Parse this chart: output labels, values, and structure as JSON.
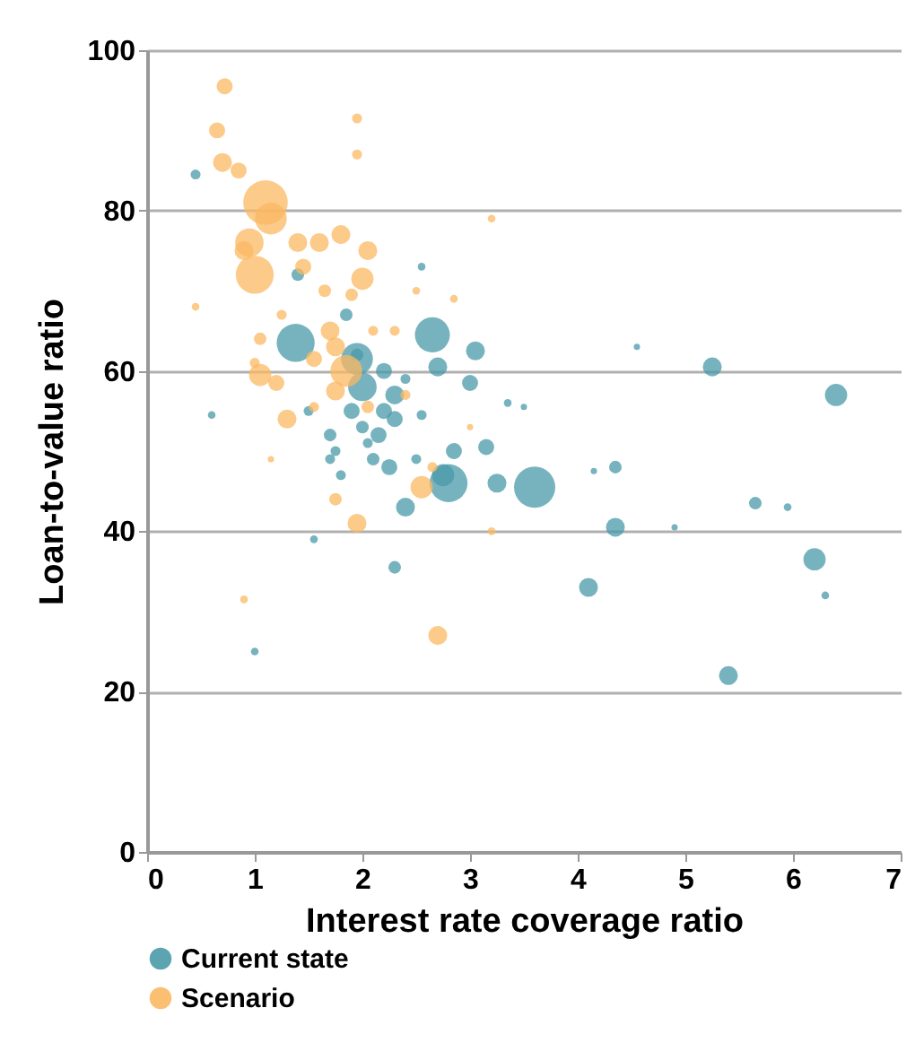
{
  "chart_data": {
    "type": "bubble",
    "xlabel": "Interest rate coverage ratio",
    "ylabel": "Loan-to-value ratio",
    "xlim": [
      0,
      7
    ],
    "xticks": [
      0,
      1,
      2,
      3,
      4,
      5,
      6,
      7
    ],
    "ylim": [
      0,
      100
    ],
    "yticks": [
      0,
      20,
      40,
      60,
      80,
      100
    ],
    "grid": "y",
    "legend": "bottom",
    "marker": "circle",
    "series": [
      {
        "name": "Current state",
        "color": "#4a9aa8",
        "x": [
          0.45,
          0.6,
          1.0,
          1.55,
          2.3,
          1.4,
          1.85,
          1.38,
          1.95,
          2.0,
          2.65,
          2.7,
          3.05,
          2.55,
          2.3,
          2.15,
          2.25,
          2.4,
          2.85,
          3.25,
          2.75,
          2.8,
          3.6,
          3.5,
          2.55,
          3.0,
          3.15,
          3.35,
          4.1,
          4.35,
          4.35,
          4.55,
          4.15,
          4.9,
          5.25,
          5.4,
          5.65,
          5.95,
          6.2,
          6.3,
          6.4,
          1.5,
          1.9,
          2.0,
          1.7,
          2.05,
          1.8,
          2.1,
          2.2,
          2.4,
          2.5,
          1.95,
          2.2,
          1.7,
          2.3,
          1.75
        ],
        "values": [
          84.5,
          54.5,
          25,
          39,
          35.5,
          72,
          67,
          63.5,
          61.5,
          58,
          64.5,
          60.5,
          62.5,
          73,
          57,
          52,
          48,
          43,
          50,
          46,
          47,
          46,
          45.5,
          55.5,
          54.5,
          58.5,
          50.5,
          56,
          33,
          48,
          40.5,
          63,
          47.5,
          40.5,
          60.5,
          22,
          43.5,
          43,
          36.5,
          32,
          57,
          55,
          55,
          53,
          52,
          51,
          47,
          49,
          55,
          59,
          49,
          62,
          60,
          49,
          54,
          50
        ],
        "sizes": [
          0.05,
          0.03,
          0.03,
          0.03,
          0.08,
          0.08,
          0.08,
          0.73,
          0.51,
          0.41,
          0.62,
          0.18,
          0.18,
          0.03,
          0.18,
          0.13,
          0.13,
          0.18,
          0.13,
          0.18,
          0.25,
          0.73,
          0.86,
          0.02,
          0.05,
          0.13,
          0.13,
          0.03,
          0.18,
          0.08,
          0.18,
          0.02,
          0.02,
          0.02,
          0.18,
          0.18,
          0.08,
          0.03,
          0.25,
          0.03,
          0.25,
          0.05,
          0.13,
          0.08,
          0.08,
          0.05,
          0.05,
          0.08,
          0.13,
          0.05,
          0.05,
          0.08,
          0.13,
          0.05,
          0.13,
          0.05
        ]
      },
      {
        "name": "Scenario",
        "color": "#fbb862",
        "x": [
          0.72,
          0.65,
          0.7,
          0.85,
          1.1,
          1.15,
          0.95,
          1.0,
          0.9,
          1.4,
          1.6,
          1.8,
          1.45,
          2.0,
          1.65,
          1.9,
          1.05,
          1.7,
          1.75,
          1.55,
          1.2,
          1.3,
          1.95,
          1.95,
          3.2,
          0.45,
          0.9,
          2.7,
          1.95,
          1.75,
          2.55,
          2.65,
          2.05,
          1.85,
          1.75,
          2.1,
          1.05,
          2.05,
          2.5,
          3.2,
          2.85,
          1.25,
          1.0,
          1.55,
          3.0,
          2.3,
          1.15,
          2.4
        ],
        "values": [
          95.5,
          90,
          86,
          85,
          81,
          79,
          76,
          72,
          75,
          76,
          76,
          77,
          73,
          71.5,
          70,
          69.5,
          64,
          65,
          63,
          61.5,
          58.5,
          54,
          91.5,
          87,
          79,
          68,
          31.5,
          27,
          41,
          44,
          45.5,
          48,
          75,
          60,
          57.5,
          65,
          59.5,
          55.5,
          70,
          40,
          69,
          67,
          61,
          55.5,
          53,
          65,
          49,
          57
        ],
        "sizes": [
          0.13,
          0.13,
          0.18,
          0.13,
          1,
          0.51,
          0.41,
          0.73,
          0.18,
          0.18,
          0.18,
          0.18,
          0.13,
          0.25,
          0.08,
          0.08,
          0.08,
          0.18,
          0.18,
          0.13,
          0.13,
          0.18,
          0.05,
          0.05,
          0.03,
          0.03,
          0.03,
          0.18,
          0.18,
          0.08,
          0.25,
          0.05,
          0.18,
          0.51,
          0.18,
          0.05,
          0.25,
          0.08,
          0.03,
          0.03,
          0.03,
          0.05,
          0.05,
          0.05,
          0.02,
          0.05,
          0.02,
          0.05
        ]
      }
    ]
  }
}
